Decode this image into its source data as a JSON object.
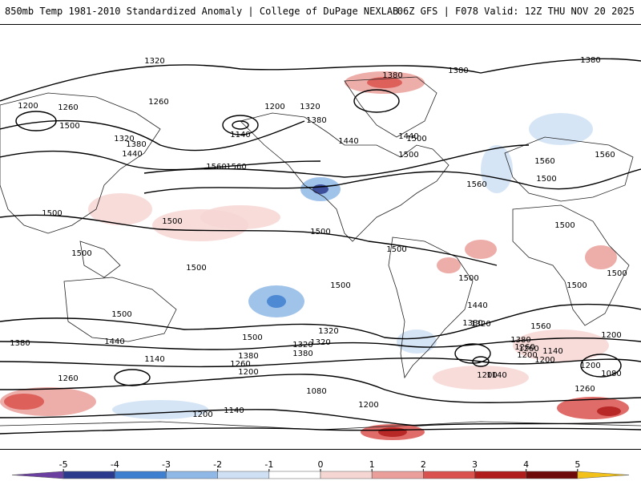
{
  "header": {
    "left_title": "850mb Temp 1981-2010 Standardized Anomaly | College of DuPage NEXLAB",
    "right_title": "06Z GFS | F078 Valid: 12Z THU NOV 20 2025"
  },
  "contour_labels": [
    "1320",
    "1380",
    "1380",
    "1380",
    "1200",
    "1260",
    "1260",
    "1200",
    "1320",
    "1500",
    "1320",
    "1380",
    "1440",
    "1140",
    "1440",
    "1380",
    "1440",
    "1500",
    "1560",
    "1560",
    "1560",
    "1560",
    "1500",
    "1500",
    "1560",
    "1500",
    "1500",
    "1500",
    "1500",
    "1500",
    "1500",
    "1500",
    "1500",
    "1500",
    "1500",
    "1500",
    "1500",
    "1440",
    "1320",
    "1380",
    "1260",
    "1200",
    "1140",
    "1380",
    "1320",
    "1260",
    "1140",
    "1080",
    "1200",
    "1200",
    "1140",
    "1320",
    "1260",
    "1200",
    "1140",
    "1200",
    "1080",
    "1260",
    "1200",
    "1560",
    "1380",
    "1260",
    "1200",
    "1380",
    "1440",
    "1320",
    "1380",
    "1200",
    "1500"
  ],
  "colorbar": {
    "ticks": [
      "-5",
      "-4",
      "-3",
      "-2",
      "-1",
      "0",
      "1",
      "2",
      "3",
      "4",
      "5"
    ],
    "colors": [
      "#6a3fa0",
      "#2b3a8c",
      "#3f7fd0",
      "#8fb8e6",
      "#cfe0f4",
      "#ffffff",
      "#f6d6d3",
      "#ea9f9a",
      "#d9524d",
      "#b01c1c",
      "#6e0a0a",
      "#f2c21a"
    ]
  }
}
